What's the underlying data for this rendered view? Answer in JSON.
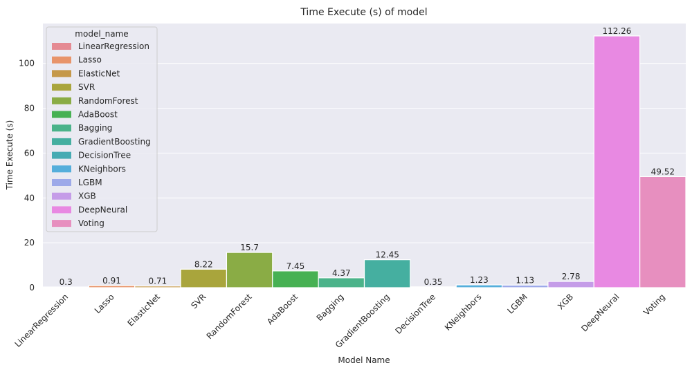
{
  "chart_data": {
    "type": "bar",
    "title": "Time Execute (s) of model",
    "xlabel": "Model Name",
    "ylabel": "Time Execute (s)",
    "ylim": [
      0,
      117.8
    ],
    "yticks": [
      0,
      20,
      40,
      60,
      80,
      100
    ],
    "grid": true,
    "legend_title": "model_name",
    "legend_position": "top-left",
    "categories": [
      "LinearRegression",
      "Lasso",
      "ElasticNet",
      "SVR",
      "RandomForest",
      "AdaBoost",
      "Bagging",
      "GradientBoosting",
      "DecisionTree",
      "KNeighbors",
      "LGBM",
      "XGB",
      "DeepNeural",
      "Voting"
    ],
    "values": [
      0.3,
      0.91,
      0.71,
      8.22,
      15.7,
      7.45,
      4.37,
      12.45,
      0.35,
      1.23,
      1.13,
      2.78,
      112.26,
      49.52
    ],
    "value_labels": [
      "0.3",
      "0.91",
      "0.71",
      "8.22",
      "15.7",
      "7.45",
      "4.37",
      "12.45",
      "0.35",
      "1.23",
      "1.13",
      "2.78",
      "112.26",
      "49.52"
    ],
    "colors": [
      "#e58a93",
      "#e8946a",
      "#c59849",
      "#a9a53c",
      "#8aac45",
      "#47b153",
      "#4bb38a",
      "#45afa0",
      "#46abb3",
      "#55aedb",
      "#9da9e9",
      "#c59ce8",
      "#e889e2",
      "#e78fbf"
    ],
    "background": "#eaeaf2",
    "grid_color": "#ffffff"
  }
}
